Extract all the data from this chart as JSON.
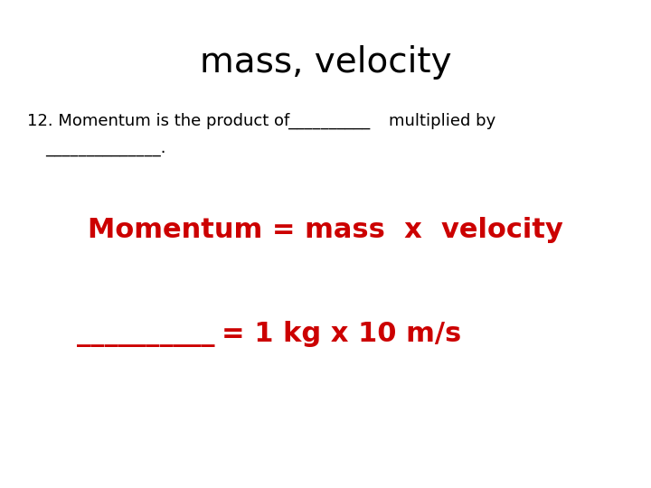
{
  "title": "mass, velocity",
  "title_color": "#000000",
  "title_fontsize": 28,
  "question_color": "#000000",
  "question_fontsize": 13,
  "momentum_eq_text": "Momentum = mass  x  velocity",
  "momentum_eq_color": "#cc0000",
  "momentum_eq_fontsize": 22,
  "blank_line_text": "__________",
  "blank_line2_text": "______________.",
  "eq2_text": "= 1 kg x 10 m/s",
  "eq2_color": "#cc0000",
  "eq2_fontsize": 22,
  "bg_color": "#ffffff"
}
